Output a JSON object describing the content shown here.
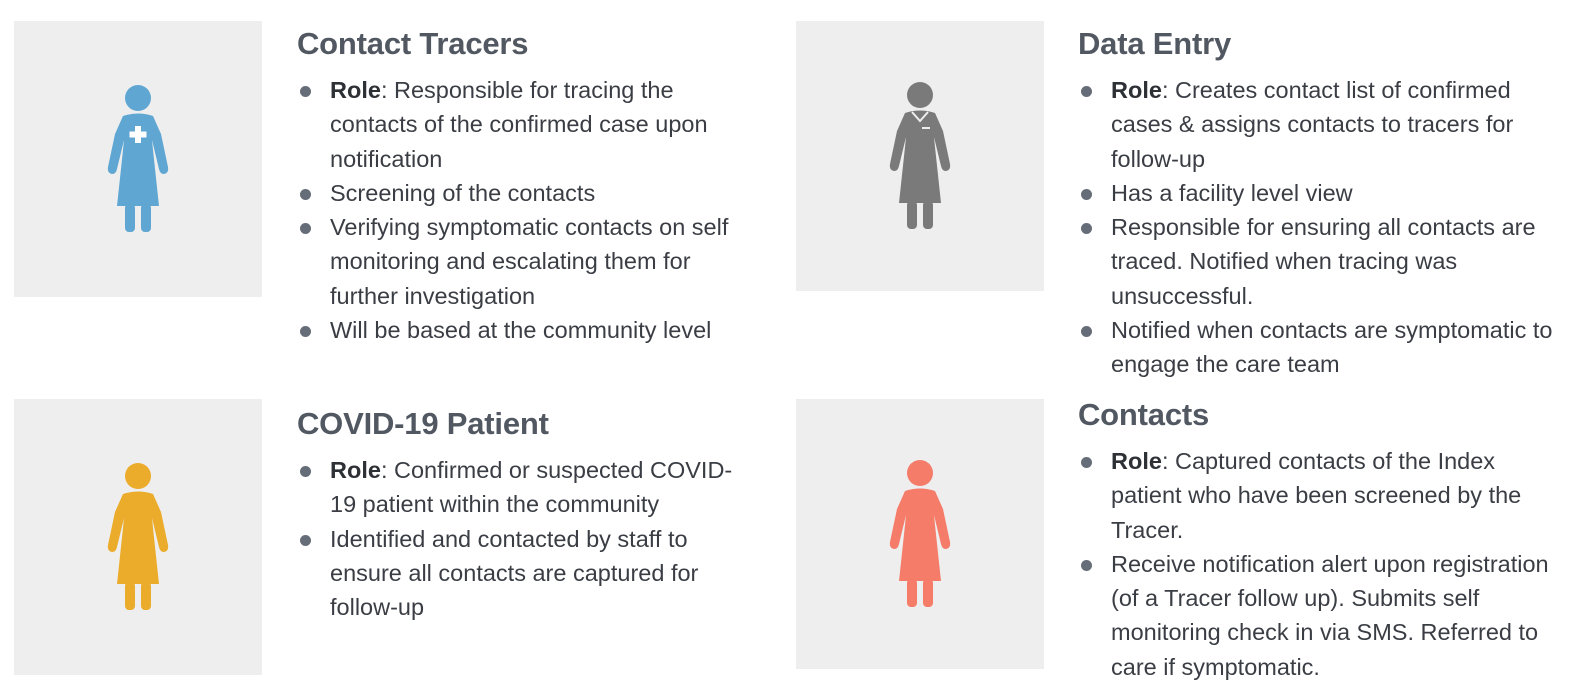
{
  "roles": [
    {
      "id": "tracers",
      "title": "Contact Tracers",
      "icon": "nurse-figure-icon",
      "icon_color": "#5fa6d3",
      "bullets": [
        {
          "lead": "Role",
          "text": ": Responsible for tracing the contacts of the confirmed case upon notification"
        },
        {
          "lead": "",
          "text": "Screening of the contacts"
        },
        {
          "lead": "",
          "text": "Verifying symptomatic contacts on self monitoring and escalating them for further investigation"
        },
        {
          "lead": "",
          "text": "Will be based at the community level"
        }
      ]
    },
    {
      "id": "entry",
      "title": "Data Entry",
      "icon": "staff-figure-icon",
      "icon_color": "#7a7a7a",
      "bullets": [
        {
          "lead": "Role",
          "text": ": Creates contact list of confirmed cases & assigns contacts to tracers for follow-up"
        },
        {
          "lead": "",
          "text": "Has a facility level view"
        },
        {
          "lead": "",
          "text": "Responsible for ensuring all contacts are traced. Notified when tracing was unsuccessful."
        },
        {
          "lead": "",
          "text": "Notified when contacts are symptomatic to engage the care team"
        }
      ]
    },
    {
      "id": "patient",
      "title": "COVID-19 Patient",
      "icon": "patient-figure-icon",
      "icon_color": "#ebab2b",
      "bullets": [
        {
          "lead": "Role",
          "text": ": Confirmed or suspected COVID-19 patient within the community"
        },
        {
          "lead": "",
          "text": "Identified and contacted by staff to ensure all contacts are captured for follow-up"
        }
      ]
    },
    {
      "id": "contacts",
      "title": "Contacts",
      "icon": "contact-figure-icon",
      "icon_color": "#f47c69",
      "bullets": [
        {
          "lead": "Role",
          "text": ": Captured contacts of the Index patient who have been screened by the Tracer."
        },
        {
          "lead": "",
          "text": "Receive notification alert upon registration (of a Tracer follow up). Submits self monitoring check in via SMS. Referred to care if symptomatic."
        }
      ]
    }
  ]
}
